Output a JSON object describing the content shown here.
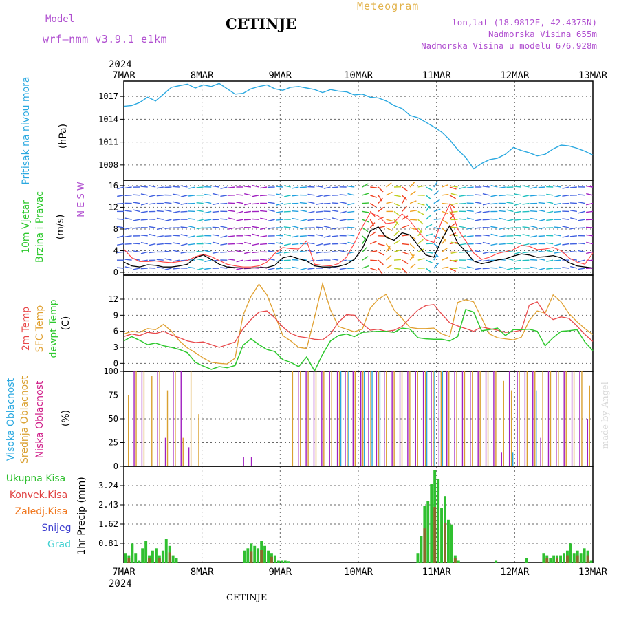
{
  "header": {
    "model_label": "Model",
    "model_name": "wrf–nmm_v3.9.1  e1km",
    "city": "CETINJE",
    "meteogram": "Meteogram",
    "lonlat": "lon,lat (18.9812E, 42.4375N)",
    "altitude": "Nadmorska Visina 655m",
    "model_altitude": "Nadmorska Visina u modelu 676.928m",
    "footer_city": "CETINJE",
    "made_by": "made by Angel"
  },
  "colors": {
    "pressure": "#29a8e0",
    "temp2m": "#e8484a",
    "sfc_temp": "#e0a030",
    "dewpoint": "#2ec82e",
    "wind_speed": "#000000",
    "wind_gust": "#ff4040",
    "high_cloud": "#29a8e0",
    "mid_cloud": "#d9a030",
    "low_cloud": "#a020c0",
    "precip_total": "#30c030",
    "precip_conv": "#e04040",
    "precip_frz": "#f07820",
    "snow": "#4040d0",
    "graupel": "#40d0d0",
    "grid": "#666666"
  },
  "x_axis": {
    "year": "2024",
    "day_labels": [
      "7MAR",
      "8MAR",
      "9MAR",
      "10MAR",
      "11MAR",
      "12MAR",
      "13MAR"
    ]
  },
  "chart_data": [
    {
      "type": "line",
      "panel": "pressure",
      "ylabel_lines": [
        "Pritisak na nivou mora"
      ],
      "unit": "(hPa)",
      "yticks": [
        1008,
        1011,
        1014,
        1017
      ],
      "ylim": [
        1006,
        1019
      ],
      "x_hours_step": 3,
      "series": [
        {
          "name": "",
          "color_key": "pressure",
          "values": [
            1015.7,
            1015.8,
            1016.2,
            1016.9,
            1016.4,
            1017.3,
            1018.2,
            1018.4,
            1018.6,
            1018.1,
            1018.5,
            1018.3,
            1018.7,
            1018.0,
            1017.3,
            1017.4,
            1018.0,
            1018.3,
            1018.5,
            1018.0,
            1017.8,
            1018.2,
            1018.3,
            1018.1,
            1017.9,
            1017.5,
            1017.9,
            1017.7,
            1017.6,
            1017.2,
            1017.3,
            1016.9,
            1016.8,
            1016.4,
            1015.8,
            1015.4,
            1014.5,
            1014.2,
            1013.6,
            1013.0,
            1012.3,
            1011.3,
            1010.0,
            1009.0,
            1007.5,
            1008.2,
            1008.7,
            1008.9,
            1009.4,
            1010.3,
            1009.9,
            1009.6,
            1009.2,
            1009.4,
            1010.1,
            1010.6,
            1010.5,
            1010.2,
            1009.8,
            1009.3
          ]
        }
      ]
    },
    {
      "type": "line",
      "panel": "wind",
      "ylabel_lines": [
        "10m Vjetar",
        "Brzina i Pravac"
      ],
      "unit": "(m/s)",
      "legend_compass": "N E S W",
      "yticks": [
        0,
        4,
        8,
        12,
        16
      ],
      "ylim": [
        -0.5,
        17
      ],
      "series": [
        {
          "name": "speed",
          "color_key": "wind_speed",
          "values": [
            1.9,
            1.2,
            1.0,
            1.4,
            1.3,
            1.0,
            1.0,
            1.2,
            1.5,
            2.7,
            3.2,
            2.4,
            1.5,
            1.0,
            0.9,
            0.8,
            0.8,
            0.9,
            0.9,
            1.3,
            2.7,
            3.0,
            2.5,
            2.1,
            1.2,
            1.0,
            1.0,
            1.1,
            1.5,
            2.4,
            4.4,
            7.6,
            8.4,
            6.5,
            5.9,
            7.3,
            6.9,
            5.0,
            3.2,
            2.8,
            6.1,
            8.6,
            5.4,
            3.9,
            2.1,
            1.6,
            1.9,
            2.3,
            2.5,
            3.0,
            3.4,
            3.2,
            2.8,
            2.9,
            3.1,
            2.7,
            1.8,
            1.2,
            1.0,
            0.8
          ]
        },
        {
          "name": "gust",
          "color_key": "wind_gust",
          "values": [
            4.3,
            2.7,
            2.0,
            2.0,
            2.1,
            1.9,
            1.8,
            2.0,
            2.2,
            2.9,
            3.3,
            2.9,
            2.2,
            1.5,
            1.2,
            1.0,
            1.0,
            1.2,
            1.9,
            3.5,
            4.6,
            4.4,
            4.3,
            5.8,
            1.5,
            1.3,
            1.2,
            1.6,
            2.8,
            5.4,
            8.4,
            11.0,
            10.4,
            9.0,
            9.2,
            10.8,
            9.5,
            7.6,
            6.0,
            5.5,
            9.5,
            12.5,
            8.0,
            5.8,
            3.6,
            2.4,
            2.8,
            3.5,
            3.8,
            4.2,
            5.0,
            4.8,
            4.2,
            4.3,
            4.6,
            4.0,
            2.7,
            1.9,
            1.5,
            3.6
          ]
        }
      ]
    },
    {
      "type": "line",
      "panel": "temperature",
      "ylabel_lines": [
        "2m Temp",
        "SFC Temp",
        "dewpt Temp"
      ],
      "unit": "(C)",
      "yticks": [
        0,
        3,
        6,
        9,
        12
      ],
      "ylim": [
        -1.5,
        16.5
      ],
      "series": [
        {
          "name": "2m Temp",
          "color_key": "temp2m",
          "values": [
            5.0,
            5.5,
            5.2,
            5.8,
            5.6,
            6.0,
            5.3,
            4.8,
            4.2,
            3.9,
            4.0,
            3.5,
            3.0,
            3.5,
            4.0,
            6.5,
            8.2,
            9.6,
            9.8,
            8.5,
            6.8,
            5.6,
            5.0,
            4.8,
            4.5,
            4.4,
            5.5,
            7.7,
            9.1,
            9.0,
            7.4,
            6.2,
            6.4,
            6.0,
            6.2,
            6.9,
            8.5,
            10.0,
            10.8,
            11.0,
            9.2,
            7.6,
            7.0,
            6.5,
            6.0,
            6.8,
            6.5,
            6.2,
            5.8,
            5.9,
            6.2,
            10.9,
            11.5,
            9.3,
            8.2,
            8.7,
            8.4,
            7.0,
            5.4,
            4.1
          ]
        },
        {
          "name": "SFC Temp",
          "color_key": "sfc_temp",
          "values": [
            5.5,
            6.0,
            5.8,
            6.5,
            6.3,
            7.3,
            6.0,
            4.2,
            2.9,
            2.0,
            1.0,
            0.2,
            0.0,
            -0.1,
            1.0,
            9.0,
            12.5,
            14.8,
            12.8,
            9.1,
            5.2,
            4.2,
            3.0,
            2.8,
            8.6,
            14.9,
            10.0,
            6.9,
            6.4,
            5.9,
            6.4,
            10.3,
            12.0,
            12.9,
            10.0,
            8.4,
            6.7,
            6.5,
            6.5,
            6.6,
            5.5,
            5.0,
            11.4,
            11.9,
            11.5,
            8.5,
            5.5,
            4.8,
            4.6,
            4.4,
            4.9,
            8.0,
            9.8,
            9.4,
            12.8,
            11.5,
            9.3,
            7.8,
            6.5,
            5.4
          ]
        },
        {
          "name": "dewpt Temp",
          "color_key": "dewpoint",
          "values": [
            4.2,
            5.0,
            4.3,
            3.5,
            3.8,
            3.3,
            3.0,
            2.6,
            2.0,
            0.2,
            -0.5,
            -1.1,
            -0.6,
            -0.8,
            -0.4,
            3.4,
            4.6,
            3.5,
            2.6,
            2.2,
            0.7,
            0.2,
            -0.6,
            1.2,
            -1.4,
            1.7,
            4.2,
            5.2,
            5.5,
            5.0,
            5.8,
            5.9,
            6.0,
            6.0,
            5.8,
            6.6,
            6.4,
            4.8,
            4.6,
            4.5,
            4.5,
            4.2,
            5.0,
            10.1,
            9.6,
            6.1,
            6.3,
            6.6,
            5.2,
            6.3,
            6.3,
            6.4,
            6.0,
            3.3,
            4.8,
            6.0,
            6.1,
            6.3,
            4.0,
            2.4
          ]
        }
      ]
    },
    {
      "type": "bar",
      "panel": "clouds",
      "ylabel_lines": [
        "Visoka Oblacnost",
        "Srednja Oblacnost",
        "Niska Oblacnost"
      ],
      "unit": "(%)",
      "yticks": [
        0,
        25,
        50,
        75,
        100
      ],
      "ylim": [
        0,
        100
      ],
      "series": [
        {
          "name": "Niska Oblacnost",
          "color_key": "low_cloud",
          "values": [
            0,
            100,
            100,
            0,
            100,
            30,
            100,
            100,
            20,
            0,
            0,
            0,
            0,
            0,
            0,
            10,
            10,
            0,
            0,
            0,
            0,
            0,
            100,
            100,
            100,
            100,
            100,
            100,
            100,
            100,
            100,
            100,
            100,
            100,
            100,
            100,
            100,
            100,
            100,
            100,
            100,
            100,
            100,
            100,
            100,
            100,
            100,
            100,
            15,
            100,
            100,
            100,
            100,
            30,
            100,
            100,
            100,
            100,
            100,
            50
          ]
        },
        {
          "name": "Srednja Oblacnost",
          "color_key": "mid_cloud",
          "values": [
            75,
            100,
            100,
            95,
            100,
            80,
            100,
            30,
            100,
            55,
            0,
            0,
            0,
            0,
            0,
            0,
            0,
            0,
            0,
            0,
            0,
            100,
            100,
            100,
            100,
            100,
            100,
            100,
            100,
            100,
            100,
            100,
            100,
            100,
            100,
            100,
            100,
            100,
            100,
            100,
            100,
            100,
            100,
            100,
            100,
            100,
            100,
            100,
            90,
            80,
            100,
            100,
            100,
            100,
            100,
            100,
            100,
            100,
            100,
            85
          ]
        },
        {
          "name": "Visoka Oblacnost",
          "color_key": "high_cloud",
          "values": [
            0,
            0,
            0,
            0,
            0,
            0,
            0,
            0,
            0,
            0,
            0,
            0,
            0,
            0,
            0,
            0,
            0,
            0,
            0,
            0,
            0,
            0,
            0,
            0,
            0,
            0,
            0,
            100,
            100,
            0,
            100,
            100,
            100,
            0,
            0,
            0,
            0,
            0,
            100,
            100,
            100,
            0,
            0,
            0,
            0,
            0,
            0,
            0,
            0,
            15,
            0,
            0,
            80,
            0,
            0,
            0,
            0,
            0,
            0,
            0
          ]
        }
      ]
    },
    {
      "type": "bar",
      "panel": "precip",
      "ylabel_lines": [
        "1hr Precip"
      ],
      "unit": "(mm)",
      "legend": [
        "Ukupna Kisa",
        "Konvek.Kisa",
        "Zaledj.Kisa",
        "Snijeg",
        "Grad"
      ],
      "yticks": [
        0.81,
        1.62,
        2.43,
        3.24
      ],
      "ylim": [
        0,
        4.05
      ],
      "series": [
        {
          "name": "Ukupna Kisa",
          "color_key": "precip_total",
          "values": [
            0.4,
            0.3,
            0.8,
            0.4,
            0.1,
            0.6,
            0.9,
            0.3,
            0.5,
            0.6,
            0.3,
            0.5,
            1.0,
            0.7,
            0.3,
            0.2,
            0,
            0,
            0,
            0,
            0,
            0,
            0,
            0,
            0,
            0,
            0,
            0,
            0,
            0,
            0,
            0,
            0,
            0,
            0,
            0.5,
            0.6,
            0.8,
            0.7,
            0.6,
            0.9,
            0.7,
            0.5,
            0.4,
            0.3,
            0.1,
            0.1,
            0.1,
            0.05,
            0,
            0,
            0,
            0,
            0,
            0,
            0,
            0,
            0,
            0,
            0,
            0,
            0,
            0,
            0,
            0,
            0,
            0,
            0,
            0,
            0,
            0,
            0,
            0,
            0,
            0,
            0,
            0,
            0,
            0,
            0,
            0,
            0,
            0,
            0,
            0,
            0,
            0.4,
            1.1,
            2.4,
            2.6,
            3.3,
            3.9,
            3.5,
            2.3,
            2.8,
            1.8,
            1.6,
            0.3,
            0.1,
            0,
            0,
            0,
            0,
            0,
            0,
            0,
            0,
            0,
            0,
            0.1,
            0,
            0,
            0,
            0,
            0,
            0,
            0,
            0,
            0.2,
            0,
            0,
            0,
            0,
            0.4,
            0.3,
            0.2,
            0.3,
            0.3,
            0.3,
            0.4,
            0.5,
            0.8,
            0.4,
            0.5,
            0.4,
            0.6,
            0.5,
            0.1
          ]
        }
      ]
    }
  ]
}
